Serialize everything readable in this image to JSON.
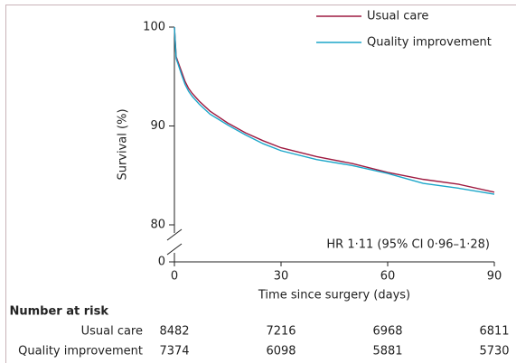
{
  "chart_data": {
    "type": "line",
    "x_label": "Time since surgery (days)",
    "y_label": "Survival (%)",
    "annotation": "HR 1·11 (95% CI 0·96–1·28)",
    "xlim": [
      0,
      90
    ],
    "xticks": [
      0,
      30,
      60,
      90
    ],
    "ylim": [
      80,
      100
    ],
    "yticks": [
      0,
      80,
      90,
      100
    ],
    "y_break": true,
    "legend": "top-right",
    "series": [
      {
        "name": "Usual care",
        "color": "#9e1a40",
        "x": [
          0,
          0.5,
          1,
          2,
          3,
          4,
          5,
          7,
          10,
          15,
          20,
          25,
          30,
          40,
          50,
          60,
          70,
          80,
          90
        ],
        "values": [
          100,
          97,
          96.5,
          95.5,
          94.5,
          93.8,
          93.3,
          92.5,
          91.5,
          90.3,
          89.3,
          88.5,
          87.8,
          86.9,
          86.2,
          85.3,
          84.6,
          84.1,
          83.3
        ]
      },
      {
        "name": "Quality improvement",
        "color": "#1ba6c9",
        "x": [
          0,
          0.5,
          1,
          2,
          3,
          4,
          5,
          7,
          10,
          15,
          20,
          25,
          30,
          40,
          50,
          60,
          70,
          80,
          90
        ],
        "values": [
          100,
          96.8,
          96.3,
          95.2,
          94.2,
          93.5,
          93,
          92.2,
          91.2,
          90.1,
          89.1,
          88.2,
          87.5,
          86.6,
          86,
          85.2,
          84.2,
          83.7,
          83.1
        ]
      }
    ],
    "risk_table": {
      "title": "Number at risk",
      "rows": [
        {
          "name": "Usual care",
          "values": [
            8482,
            7216,
            6968,
            6811
          ]
        },
        {
          "name": "Quality improvement",
          "values": [
            7374,
            6098,
            5881,
            5730
          ]
        }
      ]
    }
  }
}
